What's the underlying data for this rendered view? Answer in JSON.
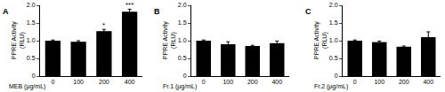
{
  "chart_data": [
    {
      "type": "bar",
      "title": "A",
      "x_label": "MEB (μg/mL)",
      "y_label": "PPRE Activity\n(RLU)",
      "categories": [
        "0",
        "100",
        "200",
        "400"
      ],
      "values": [
        1.0,
        0.97,
        1.27,
        1.82
      ],
      "errors": [
        0.02,
        0.03,
        0.05,
        0.07
      ],
      "color": "#000000",
      "ylim": [
        0,
        2
      ],
      "yticks": [
        0,
        0.5,
        {
          "value": 1,
          "label": "1.0"
        },
        1.5,
        {
          "value": 2,
          "label": "2.0"
        }
      ],
      "grid": false,
      "annotations": [
        {
          "category": "200",
          "text": "*"
        },
        {
          "category": "400",
          "text": "***"
        }
      ]
    },
    {
      "type": "bar",
      "title": "B",
      "x_label": "Fr.1 (μg/mL)",
      "y_label": "PPRE Activity\n(RLU)",
      "categories": [
        "0",
        "100",
        "200",
        "400"
      ],
      "values": [
        1.0,
        0.9,
        0.85,
        0.93
      ],
      "errors": [
        0.02,
        0.07,
        0.02,
        0.06
      ],
      "color": "#000000",
      "ylim": [
        0,
        2
      ],
      "yticks": [
        0,
        0.5,
        {
          "value": 1,
          "label": "1.0"
        },
        1.5,
        {
          "value": 2,
          "label": "2.0"
        }
      ],
      "grid": false
    },
    {
      "type": "bar",
      "title": "C",
      "x_label": "Fr.2 (μg/mL)",
      "y_label": "PPRE Activity\n(RLU)",
      "categories": [
        "0",
        "100",
        "200",
        "400"
      ],
      "values": [
        1.0,
        0.96,
        0.83,
        1.1
      ],
      "errors": [
        0.02,
        0.03,
        0.02,
        0.15
      ],
      "color": "#000000",
      "ylim": [
        0,
        2
      ],
      "yticks": [
        0,
        0.5,
        {
          "value": 1,
          "label": "1.0"
        },
        1.5,
        {
          "value": 2,
          "label": "2.0"
        }
      ],
      "grid": false
    }
  ]
}
